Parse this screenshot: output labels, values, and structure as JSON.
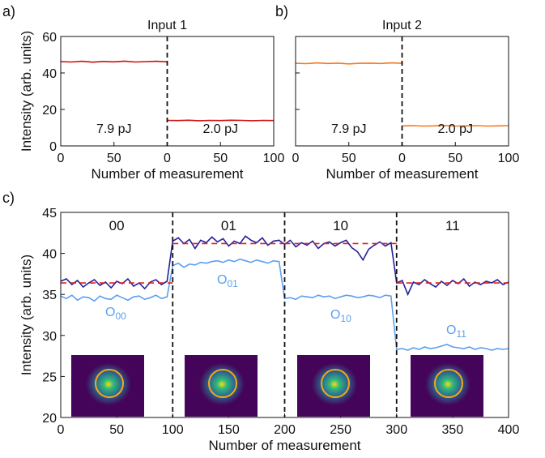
{
  "chart_data": [
    {
      "type": "line",
      "panel_label": "a)",
      "title": "Input 1",
      "x_label": "Number of measurement",
      "y_label": "Intensity (arb. units)",
      "xlim": [
        0,
        200
      ],
      "ylim": [
        0,
        60
      ],
      "xticks": [
        0,
        50,
        {
          "value": 100,
          "label": "0"
        },
        {
          "value": 150,
          "label": "50"
        },
        {
          "value": 200,
          "label": "100"
        }
      ],
      "yticks": [
        0,
        20,
        40,
        60
      ],
      "vlines": [
        100
      ],
      "series": [
        {
          "color": "#cc1010",
          "x": [
            0,
            10,
            20,
            30,
            40,
            50,
            60,
            70,
            80,
            90,
            100
          ],
          "values": [
            46.2,
            46.0,
            46.4,
            45.9,
            46.3,
            46.1,
            46.5,
            46.0,
            46.2,
            46.4,
            46.1
          ]
        },
        {
          "color": "#cc1010",
          "x": [
            100,
            110,
            120,
            130,
            140,
            150,
            160,
            170,
            180,
            190,
            200
          ],
          "values": [
            14.0,
            13.9,
            14.1,
            13.8,
            14.0,
            13.9,
            14.1,
            14.0,
            13.8,
            14.0,
            13.9
          ]
        }
      ],
      "annotations": [
        "7.9 pJ",
        "2.0 pJ"
      ]
    },
    {
      "type": "line",
      "panel_label": "b)",
      "title": "Input 2",
      "x_label": "Number of measurement",
      "xlim": [
        0,
        200
      ],
      "ylim": [
        0,
        60
      ],
      "xticks": [
        0,
        50,
        {
          "value": 100,
          "label": "0"
        },
        {
          "value": 150,
          "label": "50"
        },
        {
          "value": 200,
          "label": "100"
        }
      ],
      "ytick_marks": [
        0,
        20,
        40,
        60
      ],
      "vlines": [
        100
      ],
      "series": [
        {
          "color": "#f57a1e",
          "x": [
            0,
            10,
            20,
            30,
            40,
            50,
            60,
            70,
            80,
            90,
            100
          ],
          "values": [
            45.3,
            45.1,
            45.5,
            45.2,
            45.4,
            45.0,
            45.3,
            45.4,
            45.2,
            45.5,
            45.3
          ]
        },
        {
          "color": "#f57a1e",
          "x": [
            100,
            110,
            120,
            130,
            140,
            150,
            160,
            170,
            180,
            190,
            200
          ],
          "values": [
            11.0,
            11.1,
            10.9,
            11.0,
            11.2,
            10.9,
            11.0,
            11.1,
            10.9,
            11.0,
            11.1
          ]
        }
      ],
      "annotations": [
        "7.9 pJ",
        "2.0 pJ"
      ]
    },
    {
      "type": "line",
      "panel_label": "c)",
      "x_label": "Number of measurement",
      "y_label": "Intensity (arb. units)",
      "xlim": [
        0,
        400
      ],
      "ylim": [
        20,
        45
      ],
      "xticks": [
        0,
        50,
        100,
        150,
        200,
        250,
        300,
        350,
        400
      ],
      "yticks": [
        20,
        25,
        30,
        35,
        40,
        45
      ],
      "vlines": [
        100,
        200,
        300
      ],
      "x": [
        0,
        5,
        10,
        15,
        20,
        25,
        30,
        35,
        40,
        45,
        50,
        55,
        60,
        65,
        70,
        75,
        80,
        85,
        90,
        95,
        100,
        105,
        110,
        115,
        120,
        125,
        130,
        135,
        140,
        145,
        150,
        155,
        160,
        165,
        170,
        175,
        180,
        185,
        190,
        195,
        200,
        205,
        210,
        215,
        220,
        225,
        230,
        235,
        240,
        245,
        250,
        255,
        260,
        265,
        270,
        275,
        280,
        285,
        290,
        295,
        300,
        305,
        310,
        315,
        320,
        325,
        330,
        335,
        340,
        345,
        350,
        355,
        360,
        365,
        370,
        375,
        380,
        385,
        390,
        395,
        400
      ],
      "series": [
        {
          "color": "#5b9ff0",
          "values": [
            34.8,
            34.5,
            34.9,
            34.3,
            34.7,
            34.6,
            34.2,
            34.8,
            34.5,
            34.4,
            34.9,
            34.6,
            34.3,
            34.7,
            34.8,
            34.4,
            34.6,
            34.9,
            34.5,
            34.7,
            38.5,
            38.8,
            38.3,
            38.7,
            38.6,
            38.9,
            38.8,
            39.0,
            39.1,
            38.9,
            39.2,
            39.0,
            39.3,
            39.1,
            38.9,
            39.2,
            39.0,
            38.8,
            39.1,
            39.0,
            34.5,
            34.6,
            34.4,
            34.8,
            34.7,
            34.6,
            34.9,
            34.7,
            34.8,
            34.5,
            34.7,
            34.9,
            34.8,
            34.6,
            34.7,
            34.9,
            34.8,
            34.6,
            34.9,
            34.8,
            28.3,
            28.4,
            28.2,
            28.5,
            28.3,
            28.6,
            28.4,
            28.5,
            28.7,
            28.9,
            28.6,
            28.5,
            28.4,
            28.6,
            28.3,
            28.5,
            28.4,
            28.2,
            28.4,
            28.3,
            28.4
          ]
        },
        {
          "color": "#23229a",
          "values": [
            36.6,
            36.9,
            36.2,
            36.7,
            35.9,
            36.4,
            36.8,
            36.1,
            36.5,
            35.8,
            36.6,
            36.3,
            36.9,
            36.0,
            36.4,
            35.7,
            36.5,
            36.8,
            36.2,
            36.6,
            41.5,
            41.9,
            41.2,
            41.7,
            40.6,
            41.6,
            41.3,
            42.0,
            41.4,
            41.8,
            40.9,
            41.5,
            41.2,
            42.1,
            41.6,
            41.3,
            41.9,
            41.0,
            41.5,
            41.6,
            41.1,
            41.6,
            40.8,
            41.3,
            41.0,
            41.5,
            40.6,
            41.2,
            41.4,
            40.9,
            41.3,
            41.6,
            40.7,
            40.2,
            39.2,
            40.5,
            41.0,
            41.4,
            40.9,
            41.3,
            36.4,
            36.7,
            35.0,
            36.5,
            36.2,
            36.8,
            36.3,
            35.9,
            36.6,
            36.1,
            36.7,
            36.3,
            36.9,
            36.0,
            36.5,
            36.2,
            36.6,
            36.4,
            36.8,
            36.2,
            36.5
          ]
        }
      ],
      "fit_color": "#e02020",
      "fits": [
        {
          "x0": 0,
          "x1": 100,
          "y": 36.4
        },
        {
          "x0": 100,
          "x1": 200,
          "y": 41.2
        },
        {
          "x0": 200,
          "x1": 300,
          "y": 41.2
        },
        {
          "x0": 300,
          "x1": 400,
          "y": 36.4
        }
      ],
      "segment_labels": [
        "00",
        "01",
        "10",
        "11"
      ],
      "curve_labels": [
        {
          "text": "O",
          "sub": "00"
        },
        {
          "text": "O",
          "sub": "01"
        },
        {
          "text": "O",
          "sub": "10"
        },
        {
          "text": "O",
          "sub": "11"
        }
      ]
    }
  ]
}
